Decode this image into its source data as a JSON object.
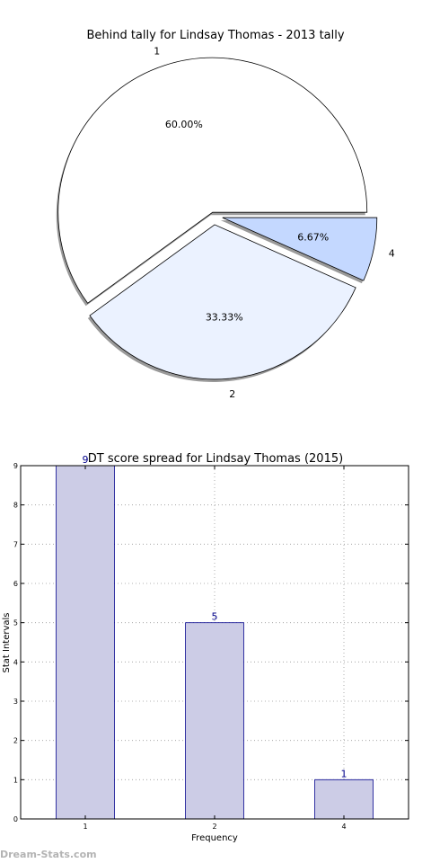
{
  "charts": {
    "pie": {
      "type": "pie",
      "title": "Behind tally for Lindsay Thomas - 2013 tally",
      "slices": [
        {
          "label": "1",
          "value": 60.0,
          "pct_label": "60.00%",
          "color": "#ffffff"
        },
        {
          "label": "2",
          "value": 33.33,
          "pct_label": "33.33%",
          "color": "#ebf2ff"
        },
        {
          "label": "4",
          "value": 6.67,
          "pct_label": "6.67%",
          "color": "#c4d8ff"
        }
      ],
      "shadow": true,
      "explode": true
    },
    "bar": {
      "type": "bar",
      "title": "DT score spread for Lindsay Thomas (2015)",
      "categories": [
        "1",
        "2",
        "4"
      ],
      "values": [
        9,
        5,
        1
      ],
      "value_labels": [
        "9",
        "5",
        "1"
      ],
      "xlabel": "Frequency",
      "ylabel": "Stat Intervals",
      "ylim": [
        0,
        9
      ],
      "yticks": [
        "0",
        "1",
        "2",
        "3",
        "4",
        "5",
        "6",
        "7",
        "8",
        "9"
      ],
      "grid": true,
      "bar_color": "#cccce6",
      "edge_color": "#00008b",
      "label_color": "#00008b"
    }
  },
  "chart_data": [
    {
      "type": "pie",
      "title": "Behind tally for Lindsay Thomas - 2013 tally",
      "categories": [
        "1",
        "2",
        "4"
      ],
      "values": [
        60.0,
        33.33,
        6.67
      ]
    },
    {
      "type": "bar",
      "title": "DT score spread for Lindsay Thomas (2015)",
      "categories": [
        "1",
        "2",
        "4"
      ],
      "values": [
        9,
        5,
        1
      ],
      "xlabel": "Frequency",
      "ylabel": "Stat Intervals",
      "ylim": [
        0,
        9
      ],
      "grid": true
    }
  ],
  "watermark": "Dream-Stats.com"
}
